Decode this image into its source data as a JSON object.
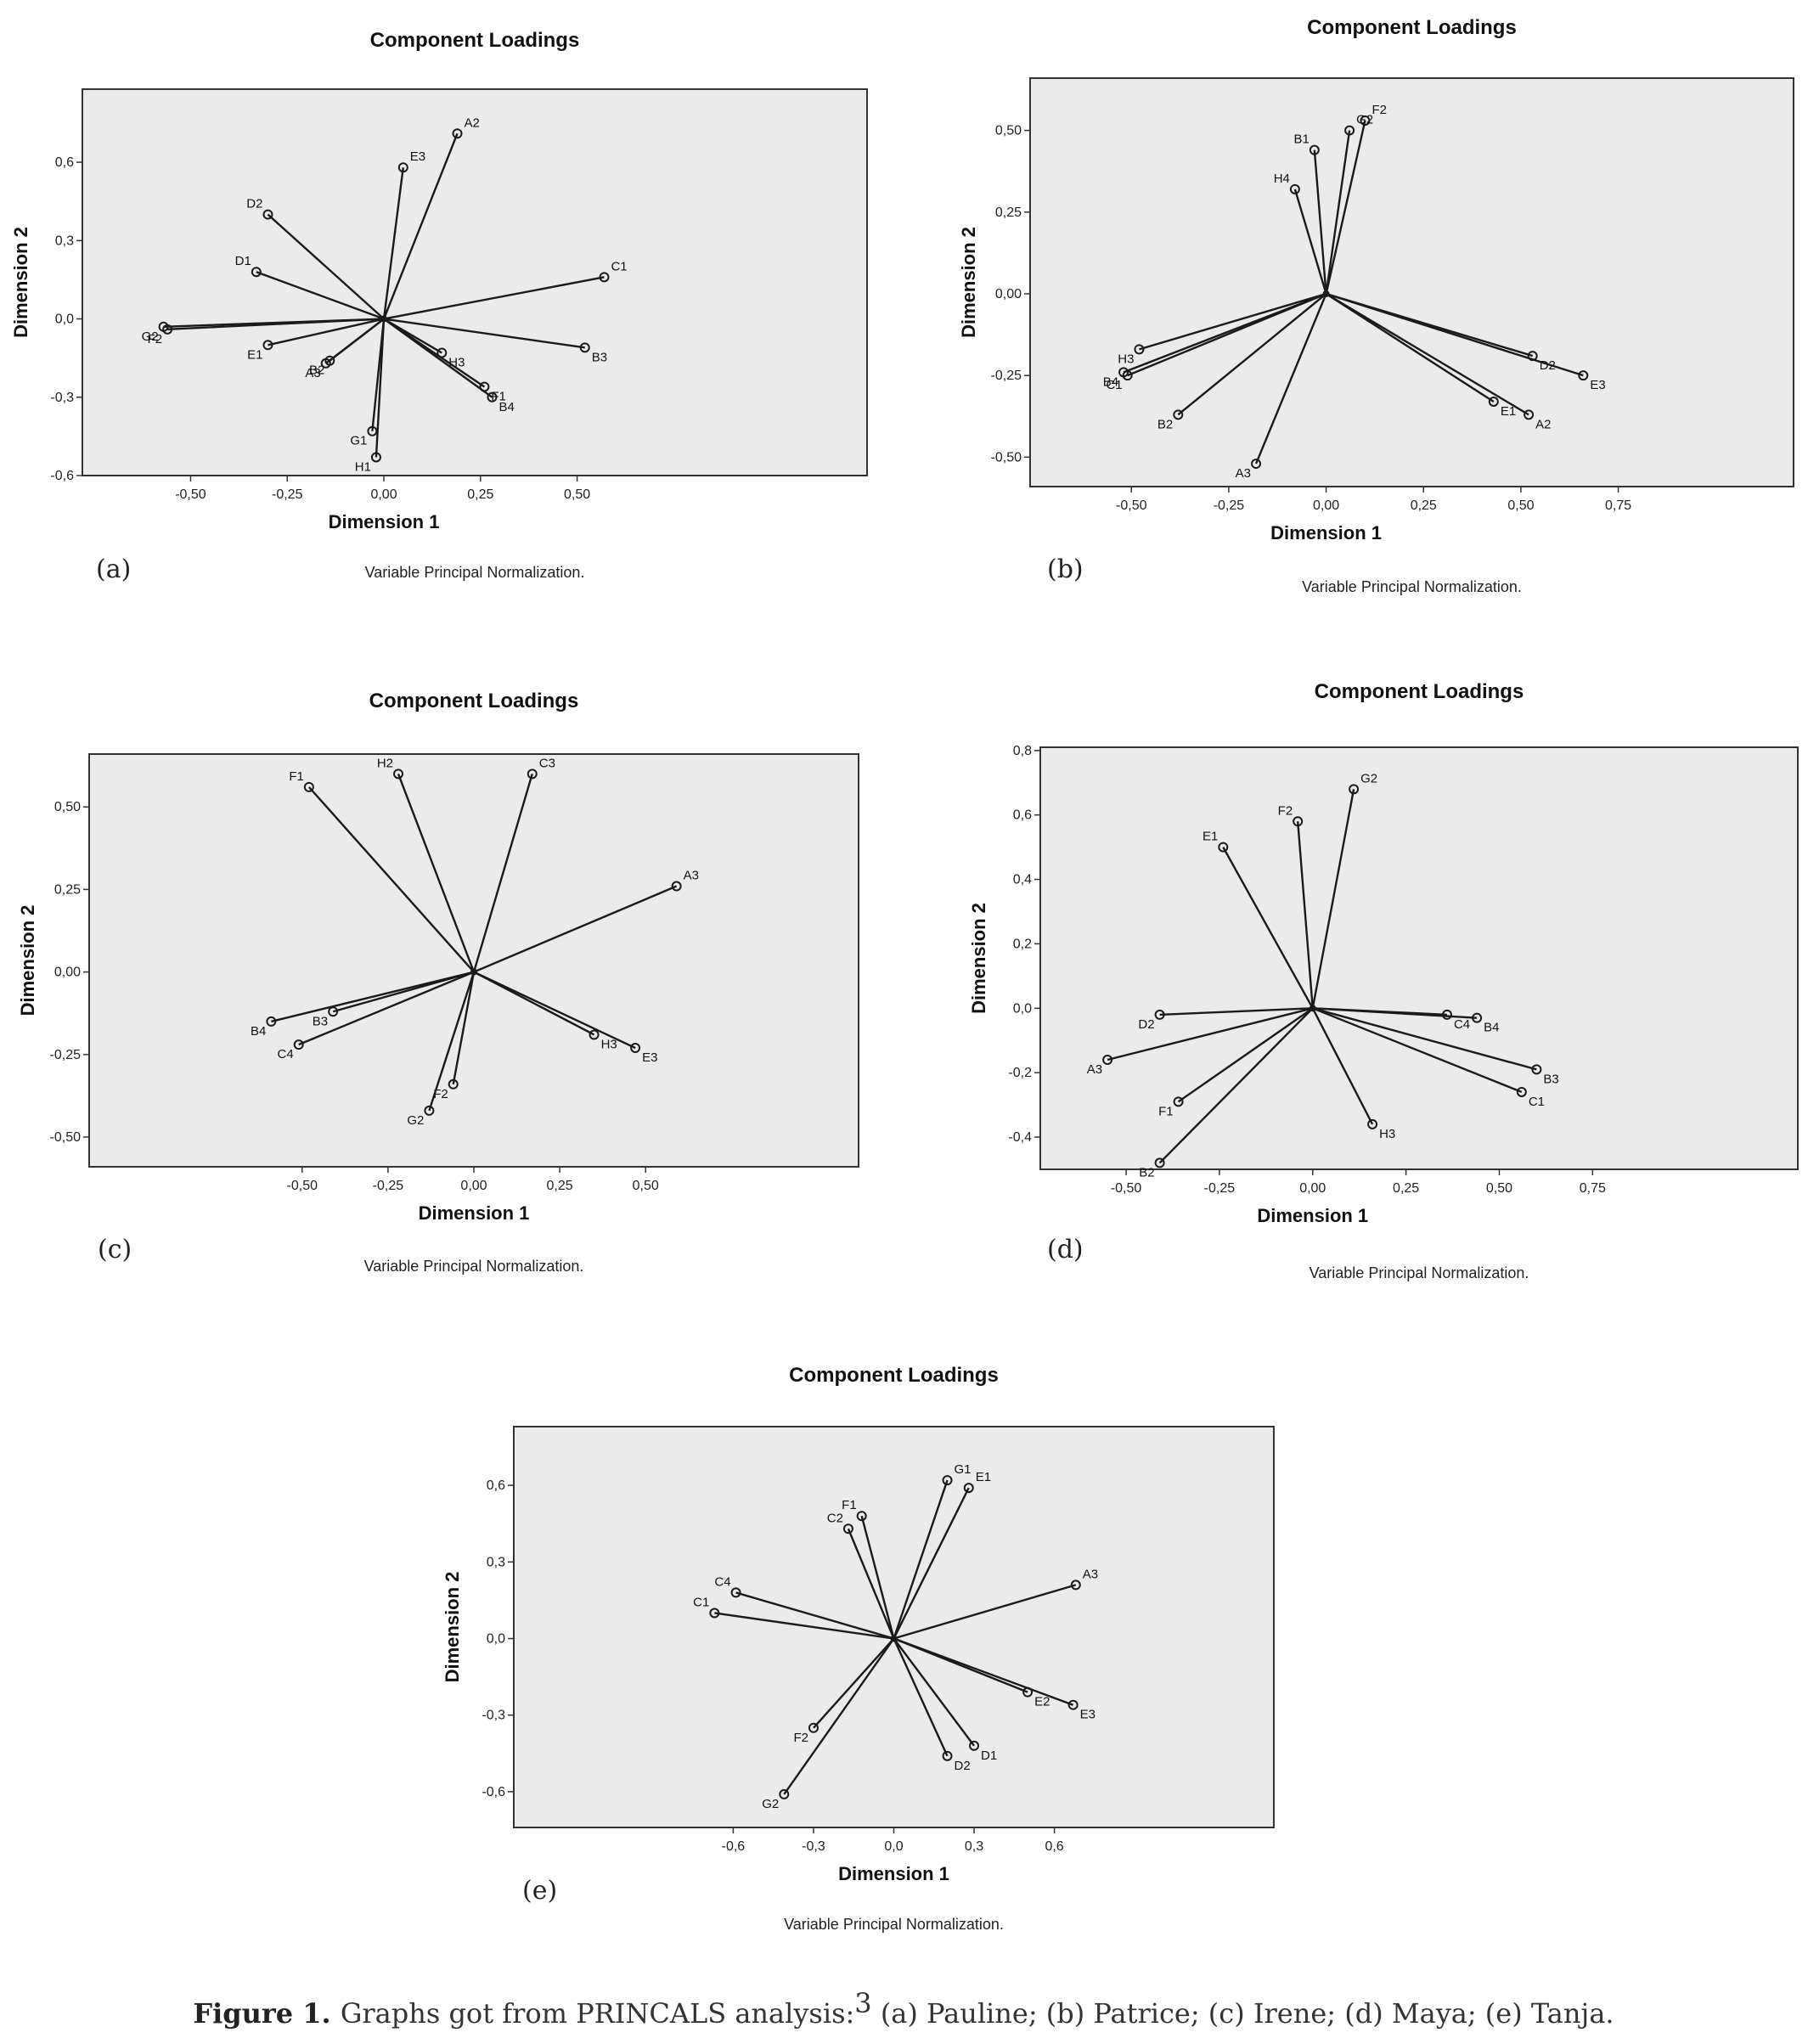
{
  "figure_caption": {
    "label": "Figure 1.",
    "text": "Graphs got from PRINCALS analysis:",
    "superscript": "3",
    "subjects": "(a) Pauline; (b) Patrice; (c) Irene; (d) Maya; (e) Tanja."
  },
  "chart_data": [
    {
      "type": "scatter",
      "panel": "(a)",
      "title": "Component Loadings",
      "xlabel": "Dimension 1",
      "ylabel": "Dimension 2",
      "note": "Variable Principal Normalization.",
      "xlim": [
        -0.78,
        1.25
      ],
      "ylim": [
        -0.6,
        0.88
      ],
      "xticks": [
        "-0,50",
        "-0,25",
        "0,00",
        "0,25",
        "0,50"
      ],
      "xtick_values": [
        -0.5,
        -0.25,
        0,
        0.25,
        0.5
      ],
      "yticks": [
        "0,6",
        "0,3",
        "0,0",
        "-0,3",
        "-0,6"
      ],
      "ytick_values": [
        0.6,
        0.3,
        0,
        -0.3,
        -0.6
      ],
      "points": [
        {
          "label": "A2",
          "x": 0.19,
          "y": 0.71
        },
        {
          "label": "E3",
          "x": 0.05,
          "y": 0.58
        },
        {
          "label": "D2",
          "x": -0.3,
          "y": 0.4
        },
        {
          "label": "D1",
          "x": -0.33,
          "y": 0.18
        },
        {
          "label": "C1",
          "x": 0.57,
          "y": 0.16
        },
        {
          "label": "G2",
          "x": -0.57,
          "y": -0.03
        },
        {
          "label": "F2",
          "x": -0.56,
          "y": -0.04
        },
        {
          "label": "E1",
          "x": -0.3,
          "y": -0.1
        },
        {
          "label": "B2",
          "x": -0.14,
          "y": -0.16
        },
        {
          "label": "A3",
          "x": -0.15,
          "y": -0.17
        },
        {
          "label": "H3",
          "x": 0.15,
          "y": -0.13
        },
        {
          "label": "B3",
          "x": 0.52,
          "y": -0.11
        },
        {
          "label": "F1",
          "x": 0.26,
          "y": -0.26
        },
        {
          "label": "B4",
          "x": 0.28,
          "y": -0.3
        },
        {
          "label": "G1",
          "x": -0.03,
          "y": -0.43
        },
        {
          "label": "H1",
          "x": -0.02,
          "y": -0.53
        }
      ]
    },
    {
      "type": "scatter",
      "panel": "(b)",
      "title": "Component Loadings",
      "xlabel": "Dimension 1",
      "ylabel": "Dimension 2",
      "note": "Variable Principal Normalization.",
      "xlim": [
        -0.76,
        1.2
      ],
      "ylim": [
        -0.59,
        0.66
      ],
      "xticks": [
        "-0,50",
        "-0,25",
        "0,00",
        "0,25",
        "0,50",
        "0,75"
      ],
      "xtick_values": [
        -0.5,
        -0.25,
        0,
        0.25,
        0.5,
        0.75
      ],
      "yticks": [
        "0,50",
        "0,25",
        "0,00",
        "-0,25",
        "-0,50"
      ],
      "ytick_values": [
        0.5,
        0.25,
        0,
        -0.25,
        -0.5
      ],
      "points": [
        {
          "label": "G2",
          "x": 0.06,
          "y": 0.5
        },
        {
          "label": "F2",
          "x": 0.1,
          "y": 0.53
        },
        {
          "label": "B1",
          "x": -0.03,
          "y": 0.44
        },
        {
          "label": "H4",
          "x": -0.08,
          "y": 0.32
        },
        {
          "label": "H3",
          "x": -0.48,
          "y": -0.17
        },
        {
          "label": "B4",
          "x": -0.52,
          "y": -0.24
        },
        {
          "label": "C1",
          "x": -0.51,
          "y": -0.25
        },
        {
          "label": "B2",
          "x": -0.38,
          "y": -0.37
        },
        {
          "label": "A3",
          "x": -0.18,
          "y": -0.52
        },
        {
          "label": "D2",
          "x": 0.53,
          "y": -0.19
        },
        {
          "label": "E3",
          "x": 0.66,
          "y": -0.25
        },
        {
          "label": "E1",
          "x": 0.43,
          "y": -0.33
        },
        {
          "label": "A2",
          "x": 0.52,
          "y": -0.37
        }
      ]
    },
    {
      "type": "scatter",
      "panel": "(c)",
      "title": "Component Loadings",
      "xlabel": "Dimension 1",
      "ylabel": "Dimension 2",
      "note": "Variable Principal Normalization.",
      "xlim": [
        -1.12,
        1.12
      ],
      "ylim": [
        -0.59,
        0.66
      ],
      "xticks": [
        "-0,50",
        "-0,25",
        "0,00",
        "0,25",
        "0,50"
      ],
      "xtick_values": [
        -0.5,
        -0.25,
        0,
        0.25,
        0.5
      ],
      "yticks": [
        "0,50",
        "0,25",
        "0,00",
        "-0,25",
        "-0,50"
      ],
      "ytick_values": [
        0.5,
        0.25,
        0,
        -0.25,
        -0.5
      ],
      "points": [
        {
          "label": "F1",
          "x": -0.48,
          "y": 0.56
        },
        {
          "label": "H2",
          "x": -0.22,
          "y": 0.6
        },
        {
          "label": "C3",
          "x": 0.17,
          "y": 0.6
        },
        {
          "label": "A3",
          "x": 0.59,
          "y": 0.26
        },
        {
          "label": "B4",
          "x": -0.59,
          "y": -0.15
        },
        {
          "label": "B3",
          "x": -0.41,
          "y": -0.12
        },
        {
          "label": "C4",
          "x": -0.51,
          "y": -0.22
        },
        {
          "label": "H3",
          "x": 0.35,
          "y": -0.19
        },
        {
          "label": "E3",
          "x": 0.47,
          "y": -0.23
        },
        {
          "label": "F2",
          "x": -0.06,
          "y": -0.34
        },
        {
          "label": "G2",
          "x": -0.13,
          "y": -0.42
        }
      ]
    },
    {
      "type": "scatter",
      "panel": "(d)",
      "title": "Component Loadings",
      "xlabel": "Dimension 1",
      "ylabel": "Dimension 2",
      "note": "Variable Principal Normalization.",
      "xlim": [
        -0.73,
        1.3
      ],
      "ylim": [
        -0.5,
        0.81
      ],
      "xticks": [
        "-0,50",
        "-0,25",
        "0,00",
        "0,25",
        "0,50",
        "0,75"
      ],
      "xtick_values": [
        -0.5,
        -0.25,
        0,
        0.25,
        0.5,
        0.75
      ],
      "yticks": [
        "0,8",
        "0,6",
        "0,4",
        "0,2",
        "0,0",
        "-0,2",
        "-0,4"
      ],
      "ytick_values": [
        0.8,
        0.6,
        0.4,
        0.2,
        0,
        -0.2,
        -0.4
      ],
      "points": [
        {
          "label": "G2",
          "x": 0.11,
          "y": 0.68
        },
        {
          "label": "F2",
          "x": -0.04,
          "y": 0.58
        },
        {
          "label": "E1",
          "x": -0.24,
          "y": 0.5
        },
        {
          "label": "D2",
          "x": -0.41,
          "y": -0.02
        },
        {
          "label": "C4",
          "x": 0.36,
          "y": -0.02
        },
        {
          "label": "B4",
          "x": 0.44,
          "y": -0.03
        },
        {
          "label": "A3",
          "x": -0.55,
          "y": -0.16
        },
        {
          "label": "F1",
          "x": -0.36,
          "y": -0.29
        },
        {
          "label": "B2",
          "x": -0.41,
          "y": -0.48
        },
        {
          "label": "H3",
          "x": 0.16,
          "y": -0.36
        },
        {
          "label": "B3",
          "x": 0.6,
          "y": -0.19
        },
        {
          "label": "C1",
          "x": 0.56,
          "y": -0.26
        }
      ]
    },
    {
      "type": "scatter",
      "panel": "(e)",
      "title": "Component Loadings",
      "xlabel": "Dimension 1",
      "ylabel": "Dimension 2",
      "note": "Variable Principal Normalization.",
      "xlim": [
        -1.42,
        1.42
      ],
      "ylim": [
        -0.74,
        0.83
      ],
      "xticks": [
        "-0,6",
        "-0,3",
        "0,0",
        "0,3",
        "0,6"
      ],
      "xtick_values": [
        -0.6,
        -0.3,
        0,
        0.3,
        0.6
      ],
      "yticks": [
        "0,6",
        "0,3",
        "0,0",
        "-0,3",
        "-0,6"
      ],
      "ytick_values": [
        0.6,
        0.3,
        0,
        -0.3,
        -0.6
      ],
      "points": [
        {
          "label": "G1",
          "x": 0.2,
          "y": 0.62
        },
        {
          "label": "E1",
          "x": 0.28,
          "y": 0.59
        },
        {
          "label": "F1",
          "x": -0.12,
          "y": 0.48
        },
        {
          "label": "C2",
          "x": -0.17,
          "y": 0.43
        },
        {
          "label": "A3",
          "x": 0.68,
          "y": 0.21
        },
        {
          "label": "C4",
          "x": -0.59,
          "y": 0.18
        },
        {
          "label": "C1",
          "x": -0.67,
          "y": 0.1
        },
        {
          "label": "E2",
          "x": 0.5,
          "y": -0.21
        },
        {
          "label": "E3",
          "x": 0.67,
          "y": -0.26
        },
        {
          "label": "D1",
          "x": 0.3,
          "y": -0.42
        },
        {
          "label": "D2",
          "x": 0.2,
          "y": -0.46
        },
        {
          "label": "F2",
          "x": -0.3,
          "y": -0.35
        },
        {
          "label": "G2",
          "x": -0.41,
          "y": -0.61
        }
      ]
    }
  ]
}
